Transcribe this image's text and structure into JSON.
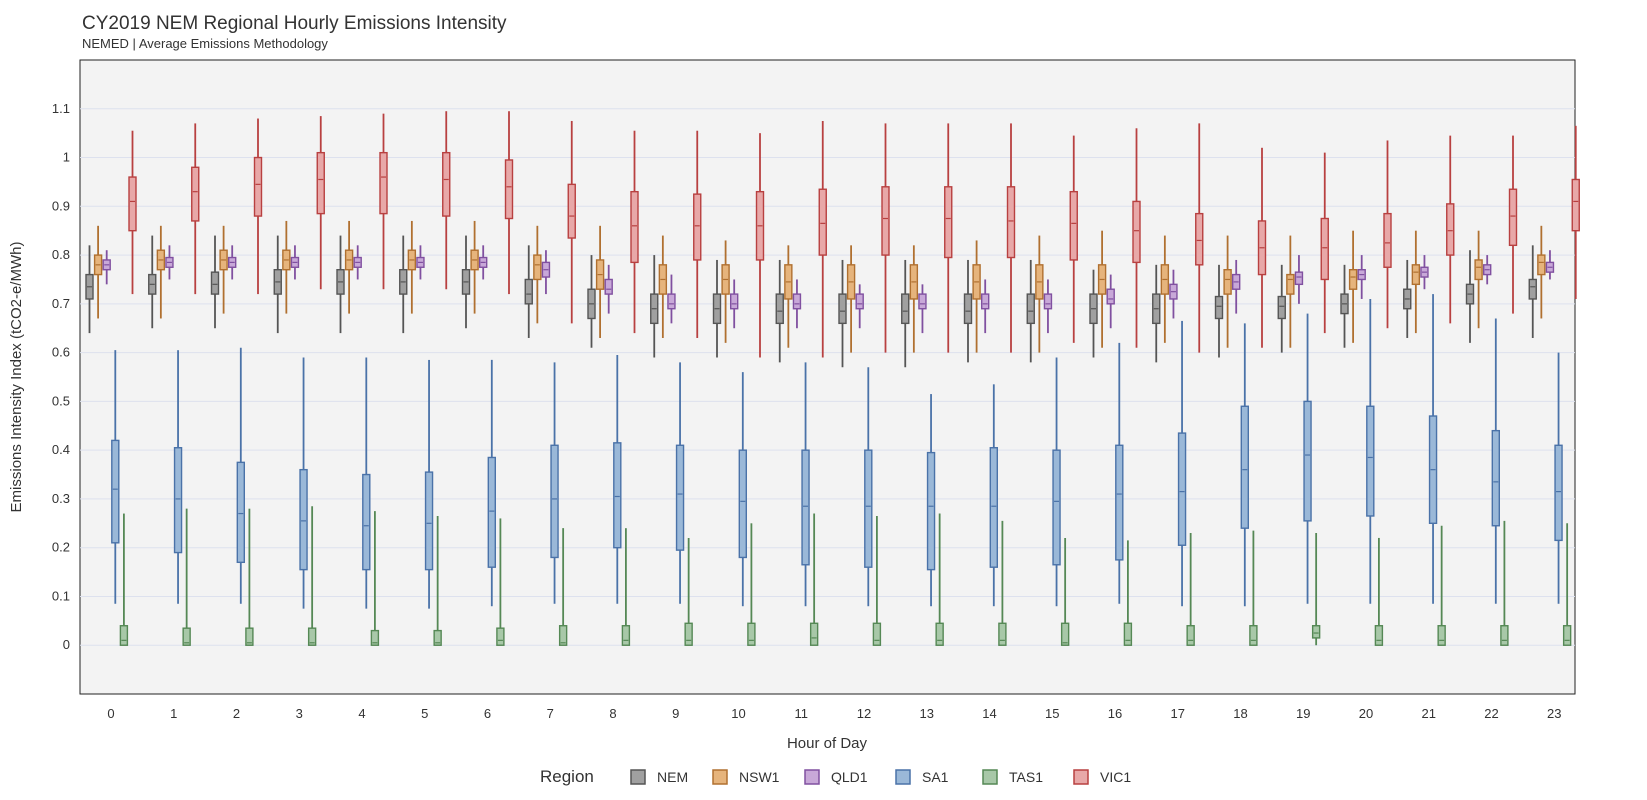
{
  "chart_data": {
    "type": "box",
    "title": "CY2019 NEM Regional Hourly Emissions Intensity",
    "subtitle": "NEMED | Average Emissions Methodology",
    "xlabel": "Hour of Day",
    "ylabel": "Emissions Intensity Index (tCO2-e/MWh)",
    "ylim": [
      -0.1,
      1.2
    ],
    "yticks": [
      0,
      0.1,
      0.2,
      0.3,
      0.4,
      0.5,
      0.6,
      0.7,
      0.8,
      0.9,
      1,
      1.1
    ],
    "ytick_labels": [
      "0",
      "0.1",
      "0.2",
      "0.3",
      "0.4",
      "0.5",
      "0.6",
      "0.7",
      "0.8",
      "0.9",
      "1",
      "1.1"
    ],
    "categories": [
      "0",
      "1",
      "2",
      "3",
      "4",
      "5",
      "6",
      "7",
      "8",
      "9",
      "10",
      "11",
      "12",
      "13",
      "14",
      "15",
      "16",
      "17",
      "18",
      "19",
      "20",
      "21",
      "22",
      "23"
    ],
    "grid": true,
    "legend": {
      "title": "Region",
      "placement": "bottom"
    },
    "series": [
      {
        "name": "NEM",
        "fill": "#a0a0a0",
        "stroke": "#555555",
        "whisker_low": [
          0.64,
          0.65,
          0.65,
          0.64,
          0.64,
          0.64,
          0.65,
          0.63,
          0.61,
          0.59,
          0.59,
          0.58,
          0.57,
          0.57,
          0.58,
          0.58,
          0.59,
          0.58,
          0.59,
          0.6,
          0.61,
          0.63,
          0.62,
          0.63
        ],
        "q1": [
          0.71,
          0.72,
          0.72,
          0.72,
          0.72,
          0.72,
          0.72,
          0.7,
          0.67,
          0.66,
          0.66,
          0.66,
          0.66,
          0.66,
          0.66,
          0.66,
          0.66,
          0.66,
          0.67,
          0.67,
          0.68,
          0.69,
          0.7,
          0.71
        ],
        "median": [
          0.735,
          0.74,
          0.74,
          0.745,
          0.745,
          0.745,
          0.745,
          0.72,
          0.7,
          0.69,
          0.69,
          0.685,
          0.685,
          0.685,
          0.685,
          0.685,
          0.69,
          0.69,
          0.695,
          0.695,
          0.7,
          0.71,
          0.72,
          0.735
        ],
        "q3": [
          0.76,
          0.76,
          0.765,
          0.77,
          0.77,
          0.77,
          0.77,
          0.75,
          0.73,
          0.72,
          0.72,
          0.72,
          0.72,
          0.72,
          0.72,
          0.72,
          0.72,
          0.72,
          0.715,
          0.715,
          0.72,
          0.73,
          0.74,
          0.75
        ],
        "whisker_high": [
          0.82,
          0.84,
          0.84,
          0.84,
          0.84,
          0.84,
          0.84,
          0.82,
          0.8,
          0.8,
          0.79,
          0.79,
          0.79,
          0.79,
          0.79,
          0.79,
          0.77,
          0.78,
          0.78,
          0.78,
          0.78,
          0.79,
          0.81,
          0.82
        ]
      },
      {
        "name": "NSW1",
        "fill": "#e6b47c",
        "stroke": "#b07030",
        "whisker_low": [
          0.67,
          0.67,
          0.68,
          0.68,
          0.68,
          0.68,
          0.68,
          0.66,
          0.63,
          0.63,
          0.62,
          0.61,
          0.6,
          0.6,
          0.6,
          0.6,
          0.61,
          0.62,
          0.61,
          0.61,
          0.62,
          0.64,
          0.65,
          0.67
        ],
        "q1": [
          0.76,
          0.77,
          0.77,
          0.77,
          0.77,
          0.77,
          0.77,
          0.75,
          0.73,
          0.72,
          0.72,
          0.71,
          0.71,
          0.71,
          0.71,
          0.71,
          0.72,
          0.72,
          0.72,
          0.72,
          0.73,
          0.74,
          0.75,
          0.76
        ],
        "median": [
          0.78,
          0.79,
          0.79,
          0.79,
          0.79,
          0.79,
          0.79,
          0.78,
          0.76,
          0.75,
          0.75,
          0.745,
          0.745,
          0.745,
          0.745,
          0.745,
          0.75,
          0.75,
          0.75,
          0.75,
          0.755,
          0.765,
          0.775,
          0.785
        ],
        "q3": [
          0.8,
          0.81,
          0.81,
          0.81,
          0.81,
          0.81,
          0.81,
          0.8,
          0.79,
          0.78,
          0.78,
          0.78,
          0.78,
          0.78,
          0.78,
          0.78,
          0.78,
          0.78,
          0.77,
          0.76,
          0.77,
          0.78,
          0.79,
          0.8
        ],
        "whisker_high": [
          0.86,
          0.86,
          0.86,
          0.87,
          0.87,
          0.87,
          0.87,
          0.86,
          0.86,
          0.84,
          0.83,
          0.82,
          0.82,
          0.82,
          0.83,
          0.84,
          0.85,
          0.84,
          0.84,
          0.84,
          0.85,
          0.85,
          0.85,
          0.86
        ]
      },
      {
        "name": "QLD1",
        "fill": "#c8a8d8",
        "stroke": "#8050a0",
        "whisker_low": [
          0.74,
          0.75,
          0.75,
          0.75,
          0.75,
          0.75,
          0.75,
          0.72,
          0.68,
          0.66,
          0.65,
          0.65,
          0.65,
          0.64,
          0.64,
          0.64,
          0.65,
          0.67,
          0.68,
          0.7,
          0.71,
          0.73,
          0.74,
          0.75
        ],
        "q1": [
          0.77,
          0.775,
          0.775,
          0.775,
          0.775,
          0.775,
          0.775,
          0.755,
          0.72,
          0.69,
          0.69,
          0.69,
          0.69,
          0.69,
          0.69,
          0.69,
          0.7,
          0.71,
          0.73,
          0.74,
          0.75,
          0.755,
          0.76,
          0.765
        ],
        "median": [
          0.78,
          0.785,
          0.785,
          0.785,
          0.785,
          0.785,
          0.785,
          0.77,
          0.73,
          0.7,
          0.7,
          0.7,
          0.7,
          0.7,
          0.7,
          0.7,
          0.71,
          0.725,
          0.745,
          0.755,
          0.76,
          0.765,
          0.77,
          0.775
        ],
        "q3": [
          0.79,
          0.795,
          0.795,
          0.795,
          0.795,
          0.795,
          0.795,
          0.785,
          0.75,
          0.72,
          0.72,
          0.72,
          0.72,
          0.72,
          0.72,
          0.72,
          0.73,
          0.74,
          0.76,
          0.765,
          0.77,
          0.775,
          0.78,
          0.785
        ],
        "whisker_high": [
          0.81,
          0.82,
          0.82,
          0.82,
          0.82,
          0.82,
          0.82,
          0.81,
          0.78,
          0.76,
          0.75,
          0.75,
          0.74,
          0.74,
          0.75,
          0.75,
          0.76,
          0.77,
          0.79,
          0.8,
          0.8,
          0.8,
          0.8,
          0.81
        ]
      },
      {
        "name": "SA1",
        "fill": "#9ab8d8",
        "stroke": "#4a72a8",
        "whisker_low": [
          0.085,
          0.085,
          0.085,
          0.075,
          0.075,
          0.075,
          0.08,
          0.085,
          0.085,
          0.085,
          0.08,
          0.08,
          0.08,
          0.08,
          0.08,
          0.08,
          0.085,
          0.08,
          0.08,
          0.085,
          0.085,
          0.085,
          0.085,
          0.085
        ],
        "q1": [
          0.21,
          0.19,
          0.17,
          0.155,
          0.155,
          0.155,
          0.16,
          0.18,
          0.2,
          0.195,
          0.18,
          0.165,
          0.16,
          0.155,
          0.16,
          0.165,
          0.175,
          0.205,
          0.24,
          0.255,
          0.265,
          0.25,
          0.245,
          0.215
        ],
        "median": [
          0.32,
          0.3,
          0.27,
          0.255,
          0.245,
          0.25,
          0.275,
          0.3,
          0.305,
          0.31,
          0.295,
          0.285,
          0.285,
          0.285,
          0.285,
          0.295,
          0.31,
          0.315,
          0.36,
          0.39,
          0.385,
          0.36,
          0.335,
          0.315
        ],
        "q3": [
          0.42,
          0.405,
          0.375,
          0.36,
          0.35,
          0.355,
          0.385,
          0.41,
          0.415,
          0.41,
          0.4,
          0.4,
          0.4,
          0.395,
          0.405,
          0.4,
          0.41,
          0.435,
          0.49,
          0.5,
          0.49,
          0.47,
          0.44,
          0.41
        ],
        "whisker_high": [
          0.605,
          0.605,
          0.61,
          0.59,
          0.59,
          0.585,
          0.585,
          0.58,
          0.595,
          0.58,
          0.56,
          0.58,
          0.57,
          0.515,
          0.535,
          0.59,
          0.62,
          0.665,
          0.66,
          0.68,
          0.71,
          0.72,
          0.67,
          0.6
        ]
      },
      {
        "name": "TAS1",
        "fill": "#a8c8a8",
        "stroke": "#558855",
        "whisker_low": [
          0,
          0,
          0,
          0,
          0,
          0,
          0,
          0,
          0,
          0,
          0,
          0,
          0,
          0,
          0,
          0,
          0,
          0,
          0,
          0,
          0,
          0,
          0,
          0
        ],
        "q1": [
          0,
          0,
          0,
          0,
          0,
          0,
          0,
          0,
          0,
          0,
          0,
          0,
          0,
          0,
          0,
          0,
          0,
          0,
          0,
          0.015,
          0,
          0,
          0,
          0
        ],
        "median": [
          0.01,
          0.005,
          0.005,
          0.005,
          0.005,
          0.005,
          0.01,
          0.005,
          0.01,
          0.01,
          0.01,
          0.015,
          0.01,
          0.01,
          0.01,
          0.005,
          0.01,
          0.01,
          0.01,
          0.025,
          0.01,
          0.01,
          0.01,
          0.01
        ],
        "q3": [
          0.04,
          0.035,
          0.035,
          0.035,
          0.03,
          0.03,
          0.035,
          0.04,
          0.04,
          0.045,
          0.045,
          0.045,
          0.045,
          0.045,
          0.045,
          0.045,
          0.045,
          0.04,
          0.04,
          0.04,
          0.04,
          0.04,
          0.04,
          0.04
        ],
        "whisker_high": [
          0.27,
          0.28,
          0.28,
          0.285,
          0.275,
          0.265,
          0.26,
          0.24,
          0.24,
          0.22,
          0.25,
          0.27,
          0.265,
          0.27,
          0.255,
          0.22,
          0.215,
          0.23,
          0.235,
          0.23,
          0.22,
          0.245,
          0.255,
          0.25
        ]
      },
      {
        "name": "VIC1",
        "fill": "#e8a8a8",
        "stroke": "#b84040",
        "whisker_low": [
          0.72,
          0.72,
          0.72,
          0.73,
          0.73,
          0.73,
          0.72,
          0.66,
          0.64,
          0.63,
          0.59,
          0.59,
          0.6,
          0.6,
          0.6,
          0.62,
          0.61,
          0.6,
          0.61,
          0.64,
          0.65,
          0.66,
          0.68,
          0.71
        ],
        "q1": [
          0.85,
          0.87,
          0.88,
          0.885,
          0.885,
          0.88,
          0.875,
          0.835,
          0.785,
          0.79,
          0.79,
          0.8,
          0.8,
          0.795,
          0.795,
          0.79,
          0.785,
          0.78,
          0.76,
          0.75,
          0.775,
          0.8,
          0.82,
          0.85
        ],
        "median": [
          0.91,
          0.93,
          0.945,
          0.955,
          0.96,
          0.955,
          0.94,
          0.88,
          0.86,
          0.86,
          0.86,
          0.865,
          0.875,
          0.875,
          0.87,
          0.865,
          0.85,
          0.83,
          0.815,
          0.815,
          0.825,
          0.85,
          0.88,
          0.91
        ],
        "q3": [
          0.96,
          0.98,
          1.0,
          1.01,
          1.01,
          1.01,
          0.995,
          0.945,
          0.93,
          0.925,
          0.93,
          0.935,
          0.94,
          0.94,
          0.94,
          0.93,
          0.91,
          0.885,
          0.87,
          0.875,
          0.885,
          0.905,
          0.935,
          0.955
        ],
        "whisker_high": [
          1.055,
          1.07,
          1.08,
          1.085,
          1.09,
          1.095,
          1.095,
          1.075,
          1.055,
          1.055,
          1.05,
          1.075,
          1.07,
          1.07,
          1.07,
          1.045,
          1.06,
          1.07,
          1.02,
          1.01,
          1.035,
          1.045,
          1.045,
          1.065
        ]
      }
    ]
  }
}
